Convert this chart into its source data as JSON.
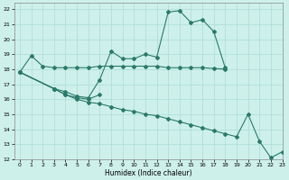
{
  "xlabel": "Humidex (Indice chaleur)",
  "xlim": [
    -0.5,
    23
  ],
  "ylim": [
    12,
    22.4
  ],
  "xticks": [
    0,
    1,
    2,
    3,
    4,
    5,
    6,
    7,
    8,
    9,
    10,
    11,
    12,
    13,
    14,
    15,
    16,
    17,
    18,
    19,
    20,
    21,
    22,
    23
  ],
  "yticks": [
    12,
    13,
    14,
    15,
    16,
    17,
    18,
    19,
    20,
    21,
    22
  ],
  "bg_color": "#cef0ea",
  "line_color": "#2a7a6a",
  "grid_color": "#aaddd6",
  "series": [
    {
      "x": [
        0,
        1,
        2,
        3,
        4,
        5,
        6,
        7,
        8,
        9,
        10,
        11,
        12,
        13,
        14,
        15,
        16,
        17,
        18
      ],
      "y": [
        17.8,
        18.9,
        18.2,
        18.1,
        18.1,
        18.1,
        18.1,
        18.2,
        18.2,
        18.2,
        18.2,
        18.2,
        18.2,
        18.1,
        18.1,
        18.1,
        18.1,
        18.05,
        18.0
      ]
    },
    {
      "x": [
        0,
        3,
        4,
        5,
        6,
        7,
        8,
        9,
        10,
        11,
        12,
        13,
        14,
        15,
        16,
        17,
        18
      ],
      "y": [
        17.8,
        16.7,
        16.5,
        16.2,
        16.1,
        17.3,
        19.2,
        18.7,
        18.7,
        19.0,
        18.8,
        21.8,
        21.9,
        21.1,
        21.3,
        20.5,
        18.1
      ]
    },
    {
      "x": [
        0,
        3,
        4,
        5,
        6,
        7
      ],
      "y": [
        17.8,
        16.7,
        16.3,
        16.1,
        16.0,
        16.3
      ]
    },
    {
      "x": [
        0,
        3,
        4,
        5,
        6,
        7,
        8,
        9,
        10,
        11,
        12,
        13,
        14,
        15,
        16,
        17,
        18,
        19,
        20,
        21,
        22,
        23
      ],
      "y": [
        17.8,
        16.7,
        16.3,
        16.0,
        15.8,
        15.7,
        15.5,
        15.3,
        15.2,
        15.0,
        14.9,
        14.7,
        14.5,
        14.3,
        14.1,
        13.9,
        13.7,
        13.5,
        15.0,
        13.2,
        12.1,
        12.5
      ]
    }
  ]
}
